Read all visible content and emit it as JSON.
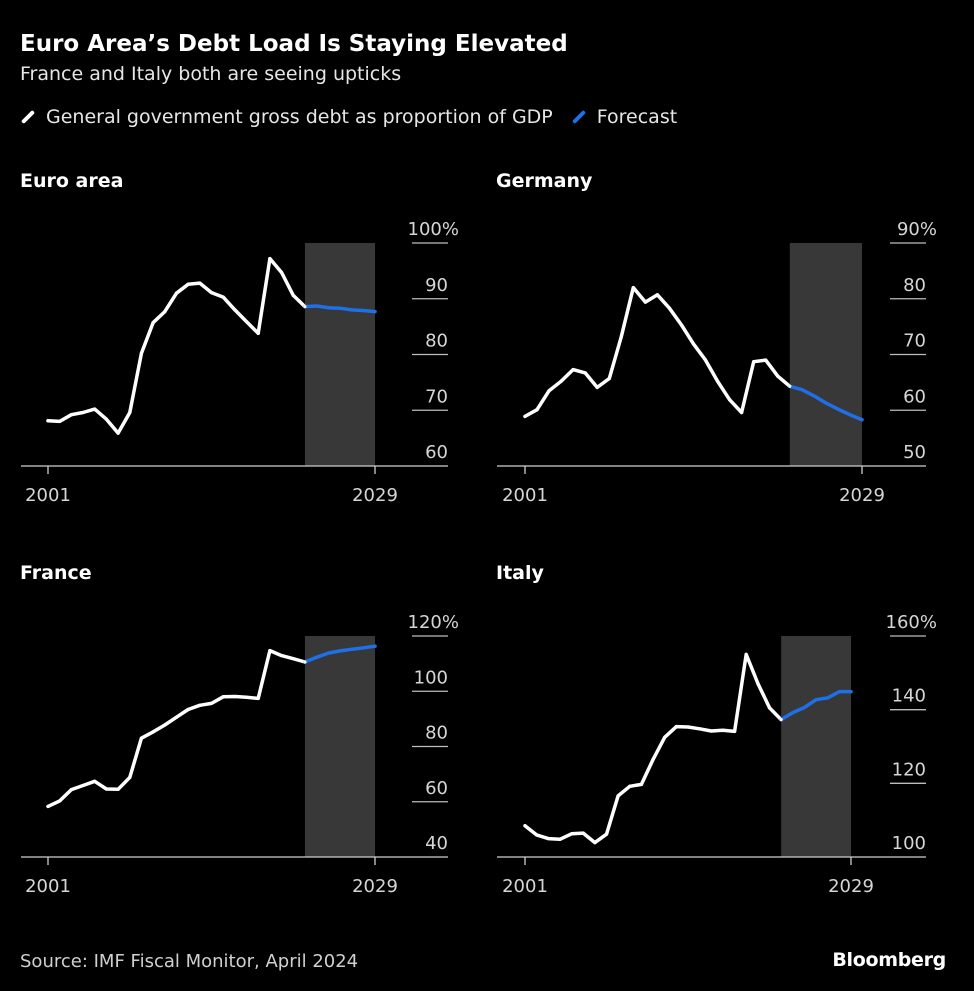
{
  "title": "Euro Area’s Debt Load Is Staying Elevated",
  "subtitle": "France and Italy both are seeing upticks",
  "legend": [
    {
      "label": "General government gross debt as proportion of GDP",
      "color": "#ffffff"
    },
    {
      "label": "Forecast",
      "color": "#1f6fe6"
    }
  ],
  "source": "Source: IMF Fiscal Monitor, April 2024",
  "logo": "Bloomberg",
  "colors": {
    "actual": "#ffffff",
    "forecast": "#1f6fe6",
    "forecast_band": "#383838",
    "background": "#000000"
  },
  "chart_data": [
    {
      "type": "line",
      "title": "Euro area",
      "xlim": [
        2001,
        2029
      ],
      "ylim": [
        60,
        100
      ],
      "x_ticks": [
        "2001",
        "2029"
      ],
      "y_ticks": [
        "100%",
        "90",
        "80",
        "70",
        "60"
      ],
      "y_tick_values": [
        100,
        90,
        80,
        70,
        60
      ],
      "forecast_start": 2023,
      "x": [
        2001,
        2002,
        2003,
        2004,
        2005,
        2006,
        2007,
        2008,
        2009,
        2010,
        2011,
        2012,
        2013,
        2014,
        2015,
        2016,
        2017,
        2018,
        2019,
        2020,
        2021,
        2022,
        2023,
        2024,
        2025,
        2026,
        2027,
        2028,
        2029
      ],
      "values": [
        68.1,
        68.0,
        69.2,
        69.6,
        70.2,
        68.4,
        65.9,
        69.6,
        80.2,
        85.7,
        87.7,
        91.0,
        92.6,
        92.8,
        91.1,
        90.3,
        88.0,
        85.9,
        83.8,
        97.2,
        94.7,
        90.6,
        88.6,
        88.7,
        88.4,
        88.3,
        88.0,
        87.9,
        87.7
      ]
    },
    {
      "type": "line",
      "title": "Germany",
      "xlim": [
        2001,
        2029
      ],
      "ylim": [
        50,
        90
      ],
      "x_ticks": [
        "2001",
        "2029"
      ],
      "y_ticks": [
        "90%",
        "80",
        "70",
        "60",
        "50"
      ],
      "y_tick_values": [
        90,
        80,
        70,
        60,
        50
      ],
      "forecast_start": 2023,
      "x": [
        2001,
        2002,
        2003,
        2004,
        2005,
        2006,
        2007,
        2008,
        2009,
        2010,
        2011,
        2012,
        2013,
        2014,
        2015,
        2016,
        2017,
        2018,
        2019,
        2020,
        2021,
        2022,
        2023,
        2024,
        2025,
        2026,
        2027,
        2028,
        2029
      ],
      "values": [
        58.9,
        60.1,
        63.5,
        65.2,
        67.3,
        66.7,
        64.1,
        65.7,
        73.2,
        82.0,
        79.4,
        80.7,
        78.3,
        75.3,
        71.9,
        69.0,
        65.2,
        61.9,
        59.6,
        68.7,
        69.0,
        66.1,
        64.3,
        63.7,
        62.6,
        61.3,
        60.2,
        59.2,
        58.3
      ]
    },
    {
      "type": "line",
      "title": "France",
      "xlim": [
        2001,
        2029
      ],
      "ylim": [
        40,
        120
      ],
      "x_ticks": [
        "2001",
        "2029"
      ],
      "y_ticks": [
        "120%",
        "100",
        "80",
        "60",
        "40"
      ],
      "y_tick_values": [
        120,
        100,
        80,
        60,
        40
      ],
      "forecast_start": 2023,
      "x": [
        2001,
        2002,
        2003,
        2004,
        2005,
        2006,
        2007,
        2008,
        2009,
        2010,
        2011,
        2012,
        2013,
        2014,
        2015,
        2016,
        2017,
        2018,
        2019,
        2020,
        2021,
        2022,
        2023,
        2024,
        2025,
        2026,
        2027,
        2028,
        2029
      ],
      "values": [
        58.3,
        60.3,
        64.4,
        65.9,
        67.4,
        64.6,
        64.5,
        68.8,
        83.0,
        85.3,
        87.8,
        90.6,
        93.4,
        94.9,
        95.6,
        98.0,
        98.1,
        97.8,
        97.4,
        114.7,
        112.9,
        111.8,
        110.6,
        112.3,
        113.8,
        114.6,
        115.2,
        115.7,
        116.3
      ]
    },
    {
      "type": "line",
      "title": "Italy",
      "xlim": [
        2001,
        2029
      ],
      "ylim": [
        100,
        160
      ],
      "x_ticks": [
        "2001",
        "2029"
      ],
      "y_ticks": [
        "160%",
        "140",
        "120",
        "100"
      ],
      "y_tick_values": [
        160,
        140,
        120,
        100
      ],
      "forecast_start": 2023,
      "x": [
        2001,
        2002,
        2003,
        2004,
        2005,
        2006,
        2007,
        2008,
        2009,
        2010,
        2011,
        2012,
        2013,
        2014,
        2015,
        2016,
        2017,
        2018,
        2019,
        2020,
        2021,
        2022,
        2023,
        2024,
        2025,
        2026,
        2027,
        2028,
        2029
      ],
      "values": [
        108.5,
        106.0,
        105.0,
        104.8,
        106.3,
        106.5,
        103.9,
        106.2,
        116.6,
        119.2,
        119.7,
        126.5,
        132.5,
        135.4,
        135.3,
        134.8,
        134.2,
        134.4,
        134.1,
        155.0,
        147.1,
        140.5,
        137.3,
        139.2,
        140.6,
        142.7,
        143.2,
        144.9,
        144.9
      ]
    }
  ]
}
